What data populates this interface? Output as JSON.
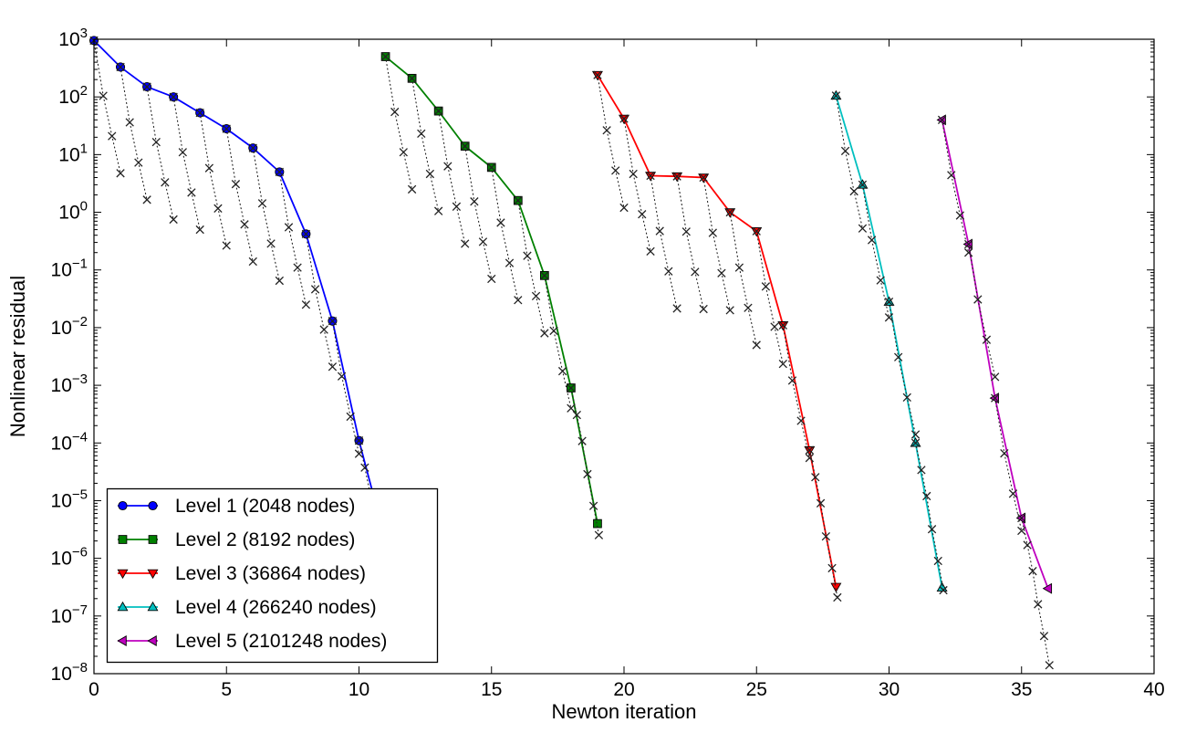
{
  "figure": {
    "background": "#ffffff",
    "title": ""
  },
  "chart_data": {
    "type": "line",
    "title": "",
    "xlabel": "Newton iteration",
    "ylabel": "Nonlinear residual",
    "y_scale": "log",
    "xlim": [
      0,
      40
    ],
    "ylim_log10": [
      -8,
      3
    ],
    "x_ticks": [
      0,
      5,
      10,
      15,
      20,
      25,
      30,
      35,
      40
    ],
    "x_tick_labels": [
      "0",
      "5",
      "10",
      "15",
      "20",
      "25",
      "30",
      "35",
      "40"
    ],
    "y_tick_exponents": [
      3,
      2,
      1,
      0,
      -1,
      -2,
      -3,
      -4,
      -5,
      -6,
      -7,
      -8
    ],
    "grid": false,
    "legend_position": "lower-left",
    "series": [
      {
        "name": "Level 1 (2048 nodes)",
        "color": "#0000ff",
        "marker": "circle",
        "x": [
          0,
          1,
          2,
          3,
          4,
          5,
          6,
          7,
          8,
          9,
          10,
          11
        ],
        "y": [
          950,
          330,
          150,
          100,
          53,
          28,
          13,
          5.0,
          0.42,
          0.013,
          0.00011,
          2e-06
        ]
      },
      {
        "name": "Level 2 (8192 nodes)",
        "color": "#008000",
        "marker": "square",
        "x": [
          11,
          12,
          13,
          14,
          15,
          16,
          17,
          18,
          19
        ],
        "y": [
          500,
          210,
          57,
          14,
          6,
          1.6,
          0.08,
          0.0009,
          4e-06
        ]
      },
      {
        "name": "Level 3 (36864 nodes)",
        "color": "#ff0000",
        "marker": "triangle-down",
        "x": [
          19,
          20,
          21,
          22,
          23,
          24,
          25,
          26,
          27,
          28
        ],
        "y": [
          240,
          42,
          4.3,
          4.2,
          4.0,
          1.0,
          0.47,
          0.011,
          7.5e-05,
          3.2e-07
        ]
      },
      {
        "name": "Level 4 (266240 nodes)",
        "color": "#00bfbf",
        "marker": "triangle-up",
        "x": [
          28,
          29,
          30,
          31,
          32
        ],
        "y": [
          105,
          3.0,
          0.028,
          0.0001,
          3.1e-07
        ]
      },
      {
        "name": "Level 5 (2101248 nodes)",
        "color": "#bf00bf",
        "marker": "triangle-left",
        "x": [
          32,
          33,
          34,
          35,
          36
        ],
        "y": [
          40,
          0.28,
          0.0006,
          5e-06,
          3e-07
        ]
      }
    ],
    "linear_solver_chains": {
      "description": "Dotted black x-marked chains: linear (inner) solver residual history within each Newton step, approximate. Each chain starts at Newton point k and descends across [k, k+1].",
      "color": "#222222",
      "marker": "x",
      "line_style": "dotted",
      "dx": [
        0,
        0.35,
        0.68,
        1.0
      ],
      "factors": [
        1,
        0.11,
        0.022,
        0.005
      ],
      "dx_last": [
        0,
        0.22,
        0.42,
        0.62,
        0.85,
        1.05
      ],
      "factors_last": [
        1,
        0.34,
        0.12,
        0.032,
        0.009,
        0.0028
      ],
      "approximate": true
    },
    "legend": {
      "entries": [
        {
          "label": "Level 1 (2048 nodes)",
          "color": "#0000ff",
          "marker": "circle"
        },
        {
          "label": "Level 2 (8192 nodes)",
          "color": "#008000",
          "marker": "square"
        },
        {
          "label": "Level 3 (36864 nodes)",
          "color": "#ff0000",
          "marker": "triangle-down"
        },
        {
          "label": "Level 4 (266240 nodes)",
          "color": "#00bfbf",
          "marker": "triangle-up"
        },
        {
          "label": "Level 5 (2101248 nodes)",
          "color": "#bf00bf",
          "marker": "triangle-left"
        }
      ]
    }
  }
}
